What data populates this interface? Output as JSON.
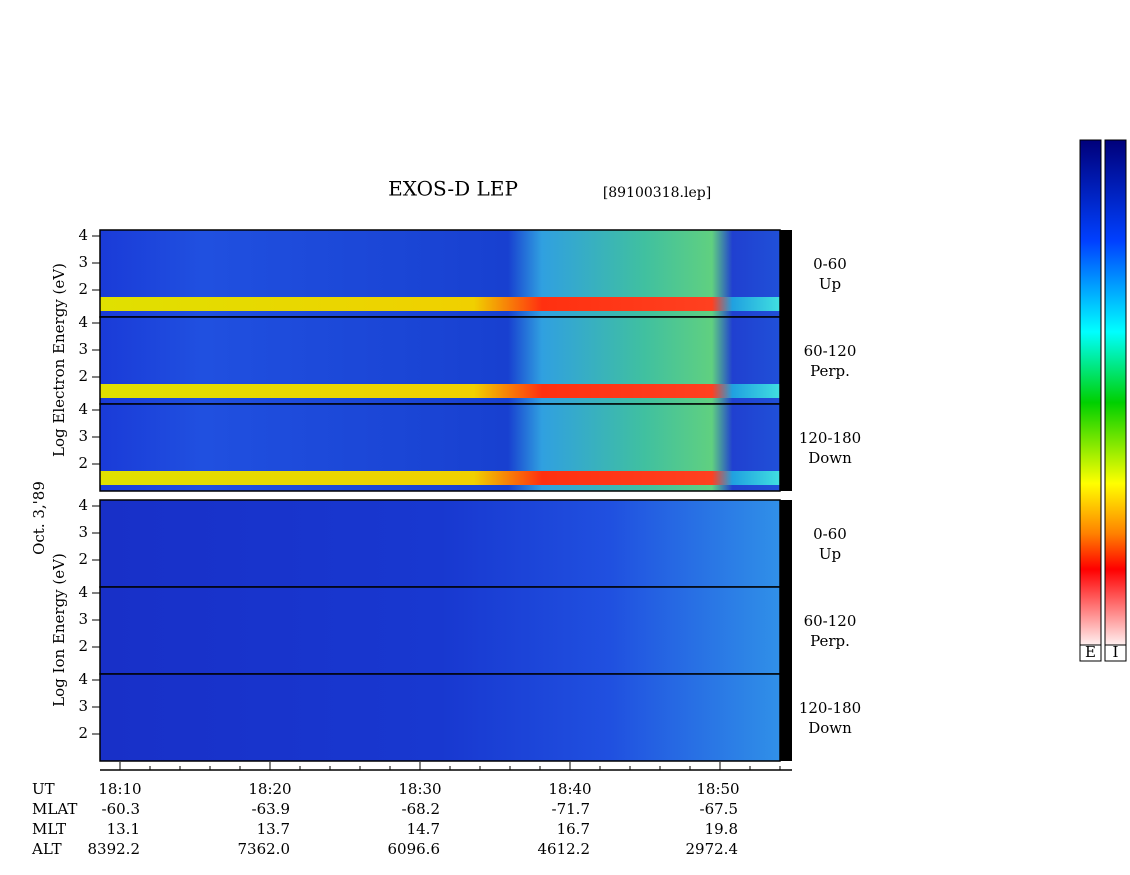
{
  "header": {
    "title": "EXOS-D LEP",
    "file": "[89100318.lep]"
  },
  "axis_labels": {
    "date": "Oct. 3,'89",
    "electron": "Log  Electron  Energy (eV)",
    "ion": "Log  Ion  Energy (eV)"
  },
  "panels": [
    {
      "range": "0-60",
      "direction": "Up",
      "yticks": [
        "4",
        "3",
        "2"
      ]
    },
    {
      "range": "60-120",
      "direction": "Perp.",
      "yticks": [
        "4",
        "3",
        "2"
      ]
    },
    {
      "range": "120-180",
      "direction": "Down",
      "yticks": [
        "4",
        "3",
        "2"
      ]
    },
    {
      "range": "0-60",
      "direction": "Up",
      "yticks": [
        "4",
        "3",
        "2"
      ]
    },
    {
      "range": "60-120",
      "direction": "Perp.",
      "yticks": [
        "4",
        "3",
        "2"
      ]
    },
    {
      "range": "120-180",
      "direction": "Down",
      "yticks": [
        "4",
        "3",
        "2"
      ]
    }
  ],
  "orbit": {
    "rows": [
      {
        "name": "UT",
        "values": [
          "18:10",
          "18:20",
          "18:30",
          "18:40",
          "18:50"
        ]
      },
      {
        "name": "MLAT",
        "values": [
          "-60.3",
          "-63.9",
          "-68.2",
          "-71.7",
          "-67.5"
        ]
      },
      {
        "name": "MLT",
        "values": [
          "13.1",
          "13.7",
          "14.7",
          "16.7",
          "19.8"
        ]
      },
      {
        "name": "ALT",
        "values": [
          "8392.2",
          "7362.0",
          "6096.6",
          "4612.2",
          "2972.4"
        ]
      }
    ]
  },
  "colorbars": [
    "E",
    "I"
  ]
}
